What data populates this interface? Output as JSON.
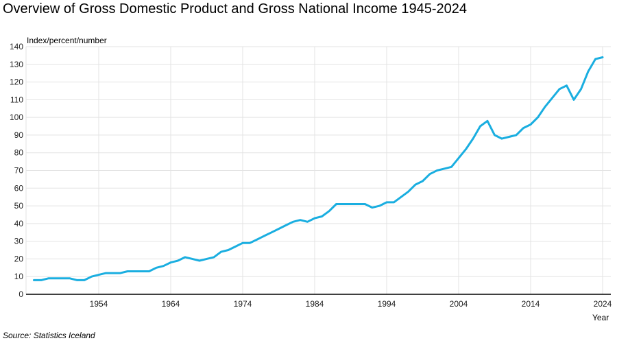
{
  "chart_data": {
    "type": "line",
    "title": "Overview of Gross Domestic Product and Gross National Income 1945-2024",
    "ylabel": "Index/percent/number",
    "xlabel": "Year",
    "source": "Source: Statistics Iceland",
    "ylim": [
      0,
      140
    ],
    "xlim": [
      1945,
      2024
    ],
    "yticks": [
      0,
      10,
      20,
      30,
      40,
      50,
      60,
      70,
      80,
      90,
      100,
      110,
      120,
      130,
      140
    ],
    "xticks": [
      1954,
      1964,
      1974,
      1984,
      1994,
      2004,
      2014,
      2024
    ],
    "grid": true,
    "line_color": "#1aaee0",
    "series": [
      {
        "name": "Index",
        "x_start": 1945,
        "values": [
          8,
          8,
          9,
          9,
          9,
          9,
          8,
          8,
          10,
          11,
          12,
          12,
          12,
          13,
          13,
          13,
          13,
          15,
          16,
          18,
          19,
          21,
          20,
          19,
          20,
          21,
          24,
          25,
          27,
          29,
          29,
          31,
          33,
          35,
          37,
          39,
          41,
          42,
          41,
          43,
          44,
          47,
          51,
          51,
          51,
          51,
          51,
          49,
          50,
          52,
          52,
          55,
          58,
          62,
          64,
          68,
          70,
          71,
          72,
          77,
          82,
          88,
          95,
          98,
          90,
          88,
          89,
          90,
          94,
          96,
          100,
          106,
          111,
          116,
          118,
          110,
          116,
          126,
          133,
          134
        ]
      }
    ]
  }
}
